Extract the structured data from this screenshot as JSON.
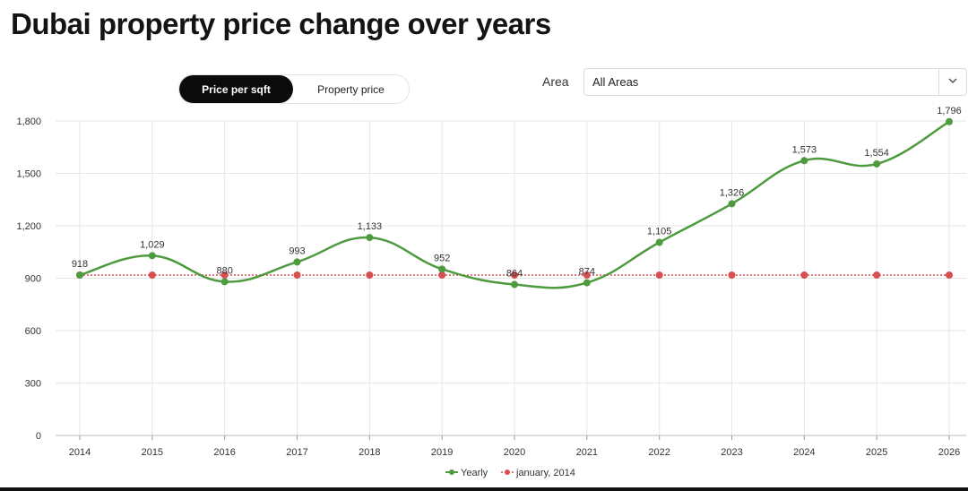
{
  "header": {
    "title": "Dubai property price change over years"
  },
  "toggle": {
    "active_label": "Price per sqft",
    "inactive_label": "Property price"
  },
  "area": {
    "label": "Area",
    "selected": "All Areas",
    "chevron_icon": "chevron-down-icon"
  },
  "colors": {
    "yearly": "#4e9a3e",
    "baseline": "#d94f4f",
    "grid": "#e6e6e6",
    "text": "#333333"
  },
  "chart_data": {
    "type": "line",
    "title": "",
    "xlabel": "",
    "ylabel": "",
    "categories": [
      "2014",
      "2015",
      "2016",
      "2017",
      "2018",
      "2019",
      "2020",
      "2021",
      "2022",
      "2023",
      "2024",
      "2025",
      "2026"
    ],
    "ylim": [
      0,
      1800
    ],
    "yticks": [
      0,
      300,
      600,
      900,
      1200,
      1500,
      1800
    ],
    "ytick_labels": [
      "0",
      "300",
      "600",
      "900",
      "1,200",
      "1,500",
      "1,800"
    ],
    "grid": true,
    "legend_position": "bottom-center",
    "series": [
      {
        "name": "Yearly",
        "style": "solid-smooth",
        "values": [
          918,
          1029,
          880,
          993,
          1133,
          952,
          864,
          874,
          1105,
          1326,
          1573,
          1554,
          1796
        ],
        "labels": [
          "918",
          "1,029",
          "880",
          "993",
          "1,133",
          "952",
          "864",
          "874",
          "1,105",
          "1,326",
          "1,573",
          "1,554",
          "1,796"
        ]
      },
      {
        "name": "january, 2014",
        "style": "dotted",
        "values": [
          918,
          918,
          918,
          918,
          918,
          918,
          918,
          918,
          918,
          918,
          918,
          918,
          918
        ]
      }
    ]
  }
}
